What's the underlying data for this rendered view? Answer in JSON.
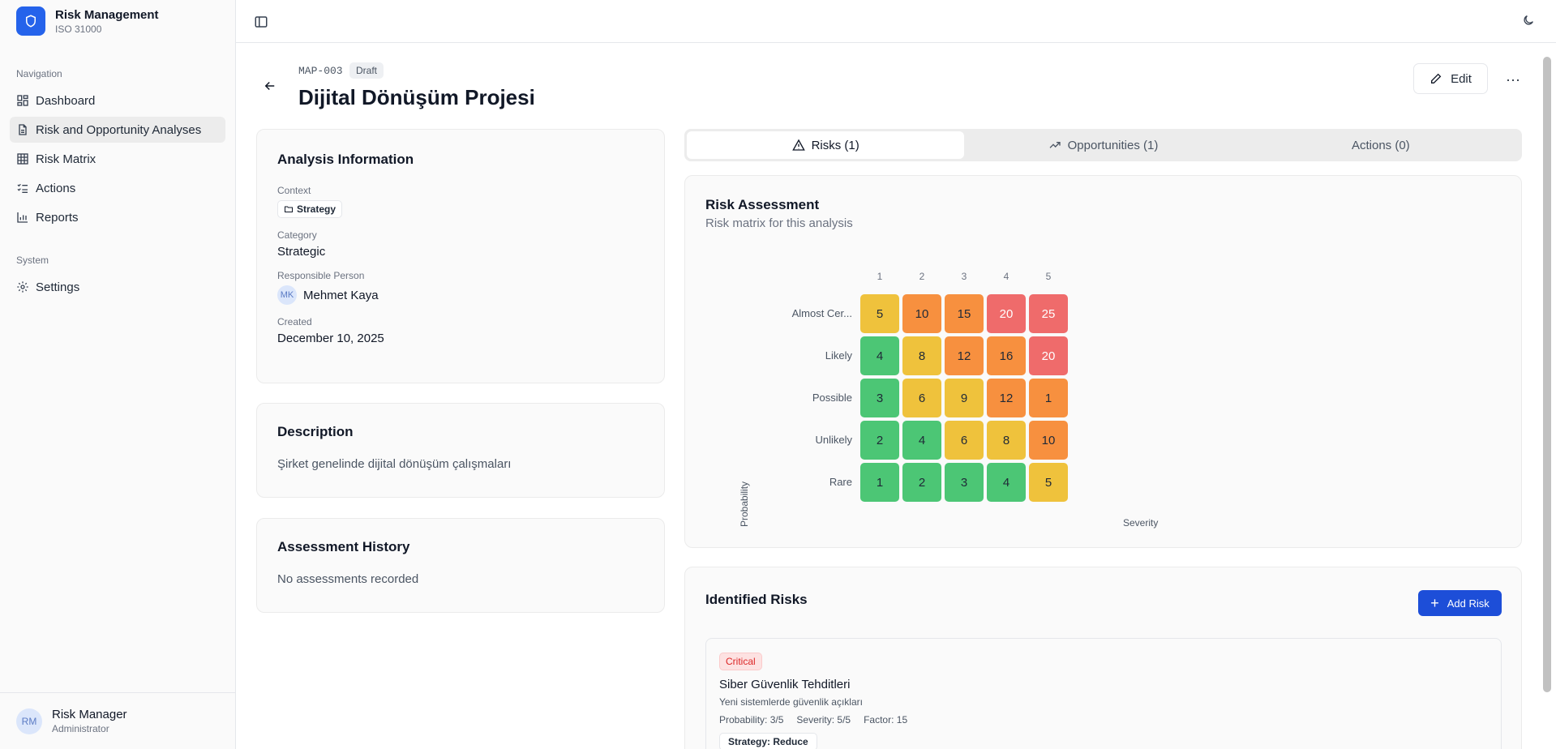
{
  "app": {
    "title": "Risk Management",
    "subtitle": "ISO 31000"
  },
  "sidebar": {
    "nav_label": "Navigation",
    "items": [
      {
        "label": "Dashboard",
        "icon": "dashboard-icon"
      },
      {
        "label": "Risk and Opportunity Analyses",
        "icon": "document-icon",
        "active": true
      },
      {
        "label": "Risk Matrix",
        "icon": "grid-icon"
      },
      {
        "label": "Actions",
        "icon": "list-checks-icon"
      },
      {
        "label": "Reports",
        "icon": "bar-chart-icon"
      }
    ],
    "system_label": "System",
    "system_items": [
      {
        "label": "Settings",
        "icon": "gear-icon"
      }
    ],
    "user": {
      "initials": "RM",
      "name": "Risk Manager",
      "role": "Administrator"
    }
  },
  "header": {
    "code": "MAP-003",
    "status": "Draft",
    "title": "Dijital Dönüşüm Projesi",
    "edit_label": "Edit",
    "more_label": "···"
  },
  "info": {
    "title": "Analysis Information",
    "context_label": "Context",
    "context_value": "Strategy",
    "category_label": "Category",
    "category_value": "Strategic",
    "responsible_label": "Responsible Person",
    "responsible_initials": "MK",
    "responsible_value": "Mehmet Kaya",
    "created_label": "Created",
    "created_value": "December 10, 2025"
  },
  "description": {
    "title": "Description",
    "text": "Şirket genelinde dijital dönüşüm çalışmaları"
  },
  "history": {
    "title": "Assessment History",
    "empty": "No assessments recorded"
  },
  "tabs": [
    {
      "label": "Risks (1)",
      "icon": "warning-icon",
      "active": true
    },
    {
      "label": "Opportunities (1)",
      "icon": "trending-up-icon"
    },
    {
      "label": "Actions (0)"
    }
  ],
  "assessment": {
    "title": "Risk Assessment",
    "subtitle": "Risk matrix for this analysis",
    "columns": [
      "1",
      "2",
      "3",
      "4",
      "5"
    ],
    "rows": [
      {
        "label": "Almost Cer...",
        "cells": [
          {
            "v": "5",
            "level": "yellow"
          },
          {
            "v": "10",
            "level": "orange"
          },
          {
            "v": "15",
            "level": "orange"
          },
          {
            "v": "20",
            "level": "red"
          },
          {
            "v": "25",
            "level": "red"
          }
        ]
      },
      {
        "label": "Likely",
        "cells": [
          {
            "v": "4",
            "level": "green"
          },
          {
            "v": "8",
            "level": "yellow"
          },
          {
            "v": "12",
            "level": "orange"
          },
          {
            "v": "16",
            "level": "orange"
          },
          {
            "v": "20",
            "level": "red"
          }
        ]
      },
      {
        "label": "Possible",
        "cells": [
          {
            "v": "3",
            "level": "green"
          },
          {
            "v": "6",
            "level": "yellow"
          },
          {
            "v": "9",
            "level": "yellow"
          },
          {
            "v": "12",
            "level": "orange"
          },
          {
            "v": "1",
            "level": "orange"
          }
        ]
      },
      {
        "label": "Unlikely",
        "cells": [
          {
            "v": "2",
            "level": "green"
          },
          {
            "v": "4",
            "level": "green"
          },
          {
            "v": "6",
            "level": "yellow"
          },
          {
            "v": "8",
            "level": "yellow"
          },
          {
            "v": "10",
            "level": "orange"
          }
        ]
      },
      {
        "label": "Rare",
        "cells": [
          {
            "v": "1",
            "level": "green"
          },
          {
            "v": "2",
            "level": "green"
          },
          {
            "v": "3",
            "level": "green"
          },
          {
            "v": "4",
            "level": "green"
          },
          {
            "v": "5",
            "level": "yellow"
          }
        ]
      }
    ],
    "y_axis": "Probability",
    "x_axis": "Severity"
  },
  "identified": {
    "title": "Identified Risks",
    "add_label": "Add Risk",
    "risk": {
      "level": "Critical",
      "title": "Siber Güvenlik Tehditleri",
      "description": "Yeni sistemlerde güvenlik açıkları",
      "probability": "Probability: 3/5",
      "severity": "Severity: 5/5",
      "factor": "Factor: 15",
      "strategy": "Strategy: Reduce"
    }
  },
  "colors": {
    "accent": "#2563eb",
    "green": "#4cc675",
    "yellow": "#efc23c",
    "orange": "#f7903f",
    "red": "#ef6b6b"
  }
}
